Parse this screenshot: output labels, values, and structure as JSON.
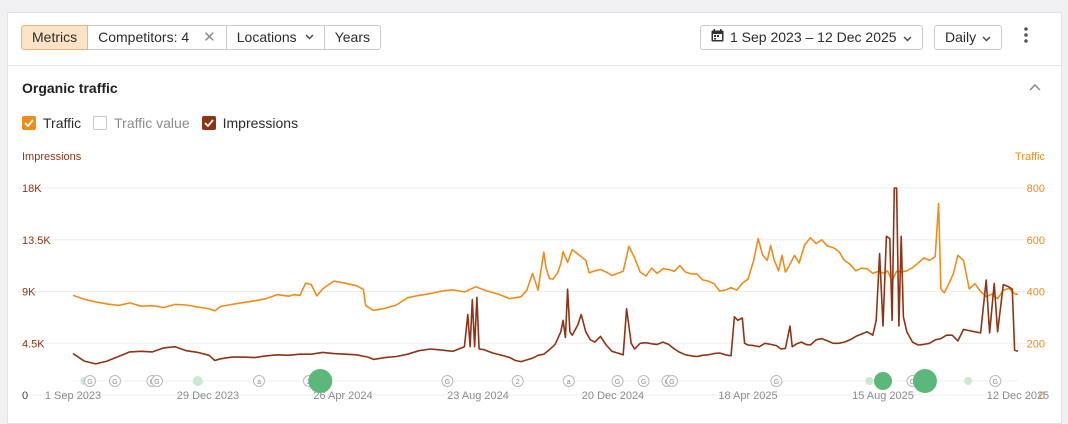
{
  "toolbar": {
    "metrics_label": "Metrics",
    "competitors_label": "Competitors: 4",
    "locations_label": "Locations",
    "years_label": "Years",
    "date_range": "1 Sep 2023 – 12 Dec 2025",
    "granularity": "Daily"
  },
  "section": {
    "title": "Organic traffic"
  },
  "legend": {
    "traffic": "Traffic",
    "traffic_value": "Traffic value",
    "impressions": "Impressions"
  },
  "colors": {
    "traffic": "#f08c1a",
    "impressions": "#8e3416",
    "update_marker": "#5cb87a"
  },
  "chart_data": {
    "type": "line",
    "left_axis": {
      "label": "Impressions",
      "ticks": [
        "18K",
        "13.5K",
        "9K",
        "4.5K",
        "0"
      ],
      "range": [
        0,
        18000
      ]
    },
    "right_axis": {
      "label": "Traffic",
      "ticks": [
        "800",
        "600",
        "400",
        "200",
        "0"
      ],
      "range": [
        0,
        800
      ]
    },
    "x_labels": [
      "1 Sep 2023",
      "29 Dec 2023",
      "26 Apr 2024",
      "23 Aug 2024",
      "20 Dec 2024",
      "18 Apr 2025",
      "15 Aug 2025",
      "12 Dec 2025"
    ],
    "x_range_days": [
      0,
      833
    ],
    "series": [
      {
        "name": "Traffic",
        "axis": "right",
        "points": [
          [
            0,
            385
          ],
          [
            10,
            370
          ],
          [
            20,
            360
          ],
          [
            30,
            352
          ],
          [
            40,
            346
          ],
          [
            50,
            356
          ],
          [
            60,
            343
          ],
          [
            70,
            345
          ],
          [
            80,
            338
          ],
          [
            90,
            350
          ],
          [
            100,
            348
          ],
          [
            110,
            340
          ],
          [
            120,
            333
          ],
          [
            125,
            325
          ],
          [
            130,
            342
          ],
          [
            140,
            350
          ],
          [
            150,
            357
          ],
          [
            160,
            364
          ],
          [
            170,
            372
          ],
          [
            180,
            388
          ],
          [
            190,
            382
          ],
          [
            195,
            388
          ],
          [
            200,
            385
          ],
          [
            205,
            432
          ],
          [
            210,
            427
          ],
          [
            215,
            383
          ],
          [
            220,
            410
          ],
          [
            230,
            440
          ],
          [
            240,
            432
          ],
          [
            250,
            422
          ],
          [
            256,
            408
          ],
          [
            258,
            345
          ],
          [
            265,
            327
          ],
          [
            275,
            335
          ],
          [
            285,
            348
          ],
          [
            295,
            376
          ],
          [
            305,
            385
          ],
          [
            315,
            392
          ],
          [
            325,
            402
          ],
          [
            335,
            406
          ],
          [
            345,
            398
          ],
          [
            355,
            418
          ],
          [
            365,
            402
          ],
          [
            375,
            390
          ],
          [
            385,
            372
          ],
          [
            395,
            380
          ],
          [
            400,
            405
          ],
          [
            405,
            470
          ],
          [
            410,
            405
          ],
          [
            412,
            468
          ],
          [
            415,
            552
          ],
          [
            417,
            490
          ],
          [
            420,
            450
          ],
          [
            423,
            448
          ],
          [
            427,
            470
          ],
          [
            430,
            508
          ],
          [
            432,
            554
          ],
          [
            436,
            512
          ],
          [
            440,
            562
          ],
          [
            444,
            548
          ],
          [
            448,
            535
          ],
          [
            452,
            520
          ],
          [
            455,
            472
          ],
          [
            460,
            480
          ],
          [
            465,
            485
          ],
          [
            470,
            475
          ],
          [
            475,
            462
          ],
          [
            480,
            470
          ],
          [
            485,
            478
          ],
          [
            490,
            575
          ],
          [
            495,
            530
          ],
          [
            500,
            475
          ],
          [
            505,
            460
          ],
          [
            510,
            490
          ],
          [
            515,
            470
          ],
          [
            520,
            488
          ],
          [
            525,
            485
          ],
          [
            530,
            478
          ],
          [
            535,
            500
          ],
          [
            540,
            475
          ],
          [
            545,
            468
          ],
          [
            550,
            468
          ],
          [
            555,
            445
          ],
          [
            560,
            440
          ],
          [
            565,
            430
          ],
          [
            570,
            402
          ],
          [
            575,
            405
          ],
          [
            580,
            415
          ],
          [
            585,
            405
          ],
          [
            590,
            432
          ],
          [
            595,
            448
          ],
          [
            600,
            520
          ],
          [
            604,
            605
          ],
          [
            608,
            540
          ],
          [
            612,
            520
          ],
          [
            615,
            578
          ],
          [
            618,
            522
          ],
          [
            622,
            480
          ],
          [
            625,
            540
          ],
          [
            628,
            475
          ],
          [
            632,
            505
          ],
          [
            636,
            540
          ],
          [
            640,
            510
          ],
          [
            645,
            580
          ],
          [
            650,
            608
          ],
          [
            655,
            585
          ],
          [
            660,
            600
          ],
          [
            665,
            575
          ],
          [
            670,
            570
          ],
          [
            675,
            555
          ],
          [
            680,
            520
          ],
          [
            685,
            505
          ],
          [
            690,
            480
          ],
          [
            695,
            490
          ],
          [
            700,
            488
          ],
          [
            705,
            470
          ],
          [
            710,
            478
          ],
          [
            715,
            470
          ],
          [
            718,
            480
          ],
          [
            722,
            440
          ],
          [
            726,
            478
          ],
          [
            730,
            475
          ],
          [
            735,
            480
          ],
          [
            740,
            492
          ],
          [
            745,
            510
          ],
          [
            750,
            530
          ],
          [
            755,
            520
          ],
          [
            760,
            535
          ],
          [
            763,
            740
          ],
          [
            765,
            410
          ],
          [
            768,
            395
          ],
          [
            772,
            430
          ],
          [
            776,
            468
          ],
          [
            780,
            540
          ],
          [
            785,
            520
          ],
          [
            790,
            410
          ],
          [
            795,
            430
          ],
          [
            800,
            400
          ],
          [
            805,
            380
          ],
          [
            810,
            390
          ],
          [
            815,
            372
          ],
          [
            820,
            405
          ],
          [
            825,
            412
          ],
          [
            830,
            392
          ],
          [
            833,
            388
          ]
        ]
      },
      {
        "name": "Impressions",
        "axis": "left",
        "points": [
          [
            0,
            3600
          ],
          [
            10,
            2950
          ],
          [
            20,
            2700
          ],
          [
            30,
            2950
          ],
          [
            40,
            3350
          ],
          [
            50,
            3750
          ],
          [
            60,
            3800
          ],
          [
            70,
            3750
          ],
          [
            80,
            4100
          ],
          [
            90,
            4200
          ],
          [
            100,
            3850
          ],
          [
            110,
            3700
          ],
          [
            120,
            3450
          ],
          [
            125,
            3000
          ],
          [
            130,
            3150
          ],
          [
            140,
            3300
          ],
          [
            150,
            3300
          ],
          [
            160,
            3250
          ],
          [
            170,
            3400
          ],
          [
            180,
            3500
          ],
          [
            190,
            3450
          ],
          [
            200,
            3550
          ],
          [
            210,
            3550
          ],
          [
            220,
            3700
          ],
          [
            230,
            3600
          ],
          [
            240,
            3550
          ],
          [
            250,
            3500
          ],
          [
            260,
            3300
          ],
          [
            265,
            3100
          ],
          [
            275,
            3250
          ],
          [
            285,
            3350
          ],
          [
            295,
            3550
          ],
          [
            305,
            3850
          ],
          [
            315,
            4000
          ],
          [
            325,
            3900
          ],
          [
            335,
            3800
          ],
          [
            340,
            4000
          ],
          [
            345,
            4200
          ],
          [
            348,
            7000
          ],
          [
            350,
            4200
          ],
          [
            352,
            8300
          ],
          [
            354,
            4200
          ],
          [
            356,
            8500
          ],
          [
            358,
            4000
          ],
          [
            362,
            3950
          ],
          [
            370,
            3650
          ],
          [
            380,
            3400
          ],
          [
            385,
            3250
          ],
          [
            390,
            3000
          ],
          [
            395,
            2900
          ],
          [
            400,
            3050
          ],
          [
            405,
            3200
          ],
          [
            410,
            3450
          ],
          [
            415,
            3550
          ],
          [
            420,
            3950
          ],
          [
            425,
            4400
          ],
          [
            430,
            5500
          ],
          [
            432,
            6500
          ],
          [
            434,
            5000
          ],
          [
            436,
            9200
          ],
          [
            438,
            5500
          ],
          [
            440,
            5200
          ],
          [
            445,
            6100
          ],
          [
            448,
            7000
          ],
          [
            452,
            5500
          ],
          [
            456,
            4800
          ],
          [
            460,
            4600
          ],
          [
            465,
            5100
          ],
          [
            470,
            4350
          ],
          [
            475,
            3800
          ],
          [
            480,
            3650
          ],
          [
            485,
            3500
          ],
          [
            488,
            7500
          ],
          [
            492,
            4500
          ],
          [
            495,
            4000
          ],
          [
            500,
            4500
          ],
          [
            505,
            4550
          ],
          [
            510,
            4450
          ],
          [
            515,
            4400
          ],
          [
            520,
            4600
          ],
          [
            525,
            4400
          ],
          [
            530,
            4000
          ],
          [
            535,
            3700
          ],
          [
            540,
            3500
          ],
          [
            545,
            3400
          ],
          [
            550,
            3350
          ],
          [
            555,
            3450
          ],
          [
            560,
            3500
          ],
          [
            565,
            3600
          ],
          [
            570,
            3650
          ],
          [
            575,
            3500
          ],
          [
            580,
            3400
          ],
          [
            583,
            6800
          ],
          [
            586,
            6500
          ],
          [
            590,
            6700
          ],
          [
            592,
            4500
          ],
          [
            595,
            4350
          ],
          [
            600,
            4300
          ],
          [
            605,
            4200
          ],
          [
            610,
            4500
          ],
          [
            615,
            4400
          ],
          [
            620,
            4300
          ],
          [
            624,
            4000
          ],
          [
            628,
            4050
          ],
          [
            632,
            6000
          ],
          [
            634,
            4200
          ],
          [
            638,
            4450
          ],
          [
            642,
            4600
          ],
          [
            646,
            4400
          ],
          [
            650,
            4350
          ],
          [
            655,
            4800
          ],
          [
            660,
            4900
          ],
          [
            665,
            4700
          ],
          [
            670,
            4500
          ],
          [
            675,
            4500
          ],
          [
            680,
            4600
          ],
          [
            685,
            4800
          ],
          [
            690,
            5100
          ],
          [
            695,
            5300
          ],
          [
            700,
            5500
          ],
          [
            705,
            5200
          ],
          [
            708,
            6500
          ],
          [
            711,
            12300
          ],
          [
            714,
            6000
          ],
          [
            717,
            13800
          ],
          [
            720,
            13600
          ],
          [
            722,
            6500
          ],
          [
            724,
            18000
          ],
          [
            726,
            18000
          ],
          [
            728,
            6000
          ],
          [
            730,
            13800
          ],
          [
            732,
            6800
          ],
          [
            735,
            5500
          ],
          [
            740,
            4600
          ],
          [
            745,
            4350
          ],
          [
            750,
            4400
          ],
          [
            755,
            4500
          ],
          [
            760,
            4800
          ],
          [
            765,
            4900
          ],
          [
            770,
            5200
          ],
          [
            775,
            5200
          ],
          [
            780,
            4700
          ],
          [
            785,
            5700
          ],
          [
            790,
            5600
          ],
          [
            795,
            5500
          ],
          [
            800,
            5400
          ],
          [
            805,
            10000
          ],
          [
            808,
            5400
          ],
          [
            812,
            9700
          ],
          [
            815,
            5500
          ],
          [
            820,
            9600
          ],
          [
            825,
            9400
          ],
          [
            828,
            9200
          ],
          [
            830,
            3900
          ],
          [
            833,
            3800
          ]
        ]
      }
    ],
    "update_markers": [
      {
        "label": "G",
        "kind": "google"
      },
      {
        "label": "2",
        "kind": "number"
      },
      {
        "label": "a",
        "kind": "annotation"
      }
    ]
  }
}
